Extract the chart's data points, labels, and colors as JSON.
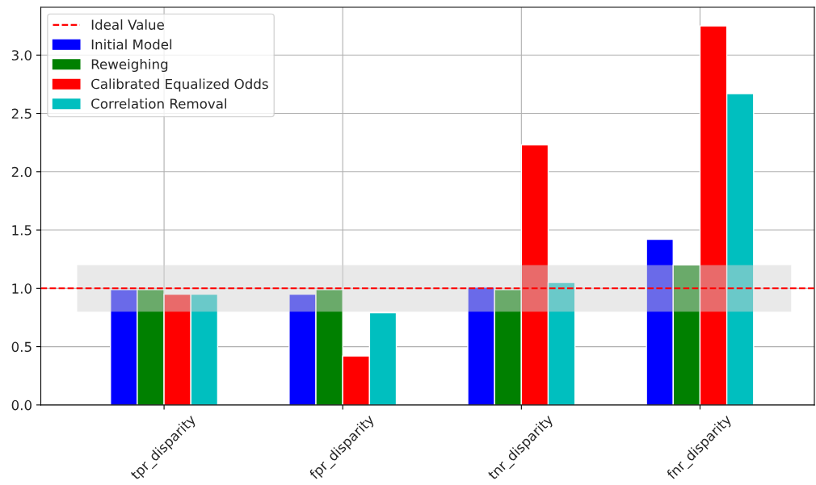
{
  "chart_data": {
    "type": "bar",
    "categories": [
      "tpr_disparity",
      "fpr_disparity",
      "tnr_disparity",
      "fnr_disparity"
    ],
    "series": [
      {
        "name": "Initial Model",
        "color": "#0000ff",
        "values": [
          0.99,
          0.95,
          1.01,
          1.42
        ]
      },
      {
        "name": "Reweighing",
        "color": "#008000",
        "values": [
          0.99,
          0.99,
          0.99,
          1.2
        ]
      },
      {
        "name": "Calibrated Equalized Odds",
        "color": "#ff0000",
        "values": [
          0.95,
          0.42,
          2.23,
          3.25
        ]
      },
      {
        "name": "Correlation Removal",
        "color": "#00bfbf",
        "values": [
          0.95,
          0.79,
          1.05,
          2.67
        ]
      }
    ],
    "ylim": [
      0,
      3.41
    ],
    "yticks": [
      {
        "value": 0,
        "label": "0.0"
      },
      0.5,
      {
        "value": 1,
        "label": "1.0"
      },
      1.5,
      {
        "value": 2,
        "label": "2.0"
      },
      2.5,
      {
        "value": 3,
        "label": "3.0"
      }
    ],
    "ref_lines": [
      {
        "axis": "y",
        "value": 1.0,
        "label": "Ideal Value",
        "color": "#ff0000",
        "line_style": "dashed"
      }
    ],
    "bands": [
      {
        "axis": "y",
        "from": 0.8,
        "to": 1.2,
        "color": "#d3d3d3"
      }
    ],
    "grid": true,
    "legend": "top left"
  }
}
